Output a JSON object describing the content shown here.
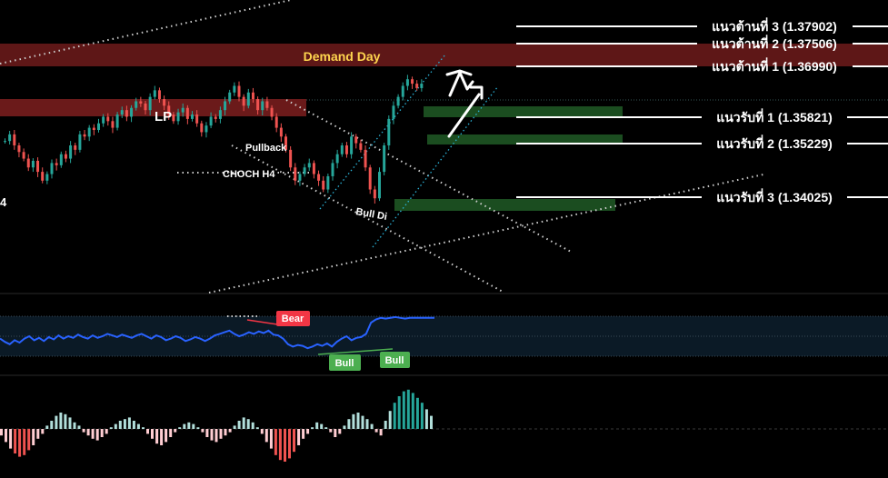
{
  "chart_data": [
    {
      "type": "candlestick",
      "title": "",
      "zones": [
        {
          "kind": "demand",
          "label": "Demand Day"
        },
        {
          "kind": "supply",
          "label": ""
        }
      ],
      "levels": [
        {
          "label": "แนวต้านที่ 3 (1.37902)",
          "price": 1.37902,
          "kind": "resistance"
        },
        {
          "label": "แนวต้านที่ 2 (1.37506)",
          "price": 1.37506,
          "kind": "resistance"
        },
        {
          "label": "แนวต้านที่ 1 (1.36990)",
          "price": 1.3699,
          "kind": "resistance"
        },
        {
          "label": "แนวรับที่ 1 (1.35821)",
          "price": 1.35821,
          "kind": "support"
        },
        {
          "label": "แนวรับที่ 2 (1.35229)",
          "price": 1.35229,
          "kind": "support"
        },
        {
          "label": "แนวรับที่ 3 (1.34025)",
          "price": 1.34025,
          "kind": "support"
        }
      ],
      "annotations": {
        "lp": "LP",
        "pullback": "Pullback",
        "choch": "CHOCH H4",
        "bull_div": "Bull Di",
        "left_edge": "4"
      },
      "ohlc_close": [
        1.353,
        1.3545,
        1.352,
        1.3505,
        1.349,
        1.347,
        1.3485,
        1.346,
        1.344,
        1.3455,
        1.348,
        1.3475,
        1.35,
        1.349,
        1.352,
        1.351,
        1.3545,
        1.354,
        1.356,
        1.3555,
        1.357,
        1.3585,
        1.3575,
        1.356,
        1.359,
        1.36,
        1.3585,
        1.3605,
        1.362,
        1.3615,
        1.36,
        1.363,
        1.3645,
        1.3625,
        1.361,
        1.359,
        1.3575,
        1.3595,
        1.3605,
        1.358,
        1.359,
        1.357,
        1.355,
        1.3565,
        1.3585,
        1.358,
        1.36,
        1.362,
        1.364,
        1.3655,
        1.363,
        1.361,
        1.364,
        1.3625,
        1.36,
        1.362,
        1.3605,
        1.3585,
        1.356,
        1.354,
        1.351,
        1.347,
        1.344,
        1.3455,
        1.347,
        1.348,
        1.3455,
        1.344,
        1.342,
        1.345,
        1.348,
        1.35,
        1.352,
        1.35,
        1.354,
        1.3525,
        1.351,
        1.347,
        1.342,
        1.34,
        1.346,
        1.352,
        1.358,
        1.361,
        1.363,
        1.3655,
        1.367,
        1.366,
        1.365,
        1.366
      ]
    },
    {
      "type": "line",
      "title": "",
      "markers": [
        {
          "label": "Bear",
          "color": "#f23645"
        },
        {
          "label": "Bull",
          "color": "#4caf50"
        },
        {
          "label": "Bull",
          "color": "#4caf50"
        }
      ],
      "series": [
        {
          "values": [
            52,
            48,
            45,
            50,
            47,
            52,
            55,
            50,
            53,
            49,
            54,
            51,
            56,
            52,
            55,
            53,
            57,
            54,
            52,
            56,
            53,
            55,
            58,
            56,
            54,
            57,
            55,
            53,
            56,
            58,
            55,
            52,
            56,
            54,
            50,
            52,
            55,
            53,
            49,
            51,
            54,
            52,
            49,
            52,
            56,
            58,
            60,
            62,
            58,
            55,
            57,
            60,
            58,
            61,
            59,
            62,
            57,
            56,
            52,
            45,
            42,
            44,
            43,
            40,
            42,
            45,
            43,
            46,
            42,
            48,
            52,
            55,
            50,
            53,
            54,
            58,
            72,
            76,
            78,
            77,
            78,
            79,
            78,
            77,
            78,
            78,
            78,
            78,
            78,
            78
          ]
        }
      ]
    },
    {
      "type": "histogram",
      "title": "",
      "values": [
        -0.4,
        -0.8,
        -1.2,
        -1.5,
        -1.7,
        -1.6,
        -1.3,
        -1.0,
        -0.6,
        -0.3,
        0.2,
        0.5,
        0.8,
        1.0,
        0.9,
        0.7,
        0.4,
        0.2,
        -0.2,
        -0.4,
        -0.6,
        -0.7,
        -0.5,
        -0.3,
        0.1,
        0.3,
        0.5,
        0.6,
        0.7,
        0.5,
        0.3,
        0.1,
        -0.3,
        -0.6,
        -0.9,
        -1.0,
        -0.8,
        -0.5,
        -0.2,
        0.1,
        0.3,
        0.4,
        0.3,
        0.1,
        -0.2,
        -0.5,
        -0.7,
        -0.8,
        -0.6,
        -0.4,
        -0.2,
        0.2,
        0.5,
        0.7,
        0.6,
        0.4,
        0.1,
        -0.3,
        -0.8,
        -1.2,
        -1.6,
        -1.9,
        -2.0,
        -1.8,
        -1.4,
        -1.0,
        -0.6,
        -0.3,
        0.1,
        0.4,
        0.3,
        0.1,
        -0.2,
        -0.5,
        -0.3,
        0.2,
        0.6,
        0.9,
        1.0,
        0.8,
        0.6,
        0.3,
        -0.2,
        -0.4,
        0.5,
        1.1,
        1.6,
        2.0,
        2.3,
        2.4,
        2.2,
        1.9,
        1.6,
        1.2,
        0.8
      ]
    }
  ],
  "colors": {
    "background": "#000000",
    "bull_candle": "#26a69a",
    "bear_candle": "#ef5350",
    "rsi_line": "#2962ff",
    "zone_red": "#5e1717",
    "zone_green": "#1b4d20",
    "demand_label": "#ffd54f",
    "level_line": "#ffffff"
  }
}
